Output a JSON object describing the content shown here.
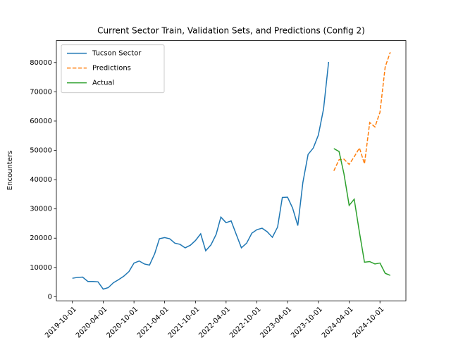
{
  "chart_data": {
    "type": "line",
    "title": "Current Sector Train, Validation Sets, and Predictions (Config 2)",
    "ylabel": "Encounters",
    "xlim": [
      "2019-06-28",
      "2025-03-04"
    ],
    "ylim": [
      -1400,
      87500
    ],
    "xticks": [
      "2019-10-01",
      "2020-04-01",
      "2020-10-01",
      "2021-04-01",
      "2021-10-01",
      "2022-04-01",
      "2022-10-01",
      "2023-04-01",
      "2023-10-01",
      "2024-04-01",
      "2024-10-01"
    ],
    "yticks": [
      0,
      10000,
      20000,
      30000,
      40000,
      50000,
      60000,
      70000,
      80000
    ],
    "legend": "upper left",
    "series": [
      {
        "name": "Tucson Sector",
        "color": "#1f77b4",
        "linestyle": "solid",
        "x": [
          "2019-10",
          "2019-11",
          "2019-12",
          "2020-01",
          "2020-02",
          "2020-03",
          "2020-04",
          "2020-05",
          "2020-06",
          "2020-07",
          "2020-08",
          "2020-09",
          "2020-10",
          "2020-11",
          "2020-12",
          "2021-01",
          "2021-02",
          "2021-03",
          "2021-04",
          "2021-05",
          "2021-06",
          "2021-07",
          "2021-08",
          "2021-09",
          "2021-10",
          "2021-11",
          "2021-12",
          "2022-01",
          "2022-02",
          "2022-03",
          "2022-04",
          "2022-05",
          "2022-06",
          "2022-07",
          "2022-08",
          "2022-09",
          "2022-10",
          "2022-11",
          "2022-12",
          "2023-01",
          "2023-02",
          "2023-03",
          "2023-04",
          "2023-05",
          "2023-06",
          "2023-07",
          "2023-08",
          "2023-09",
          "2023-10",
          "2023-11",
          "2023-12"
        ],
        "values": [
          6300,
          6600,
          6700,
          5200,
          5200,
          5100,
          2600,
          3100,
          4800,
          5800,
          7000,
          8600,
          11500,
          12200,
          11200,
          10800,
          14700,
          19800,
          20200,
          19800,
          18300,
          17900,
          16700,
          17600,
          19200,
          21500,
          15700,
          17700,
          21300,
          27200,
          25300,
          25900,
          21200,
          16700,
          18300,
          21700,
          22900,
          23400,
          22200,
          20300,
          23800,
          33900,
          34000,
          30300,
          24300,
          39000,
          48600,
          50800,
          55200,
          64200,
          80200
        ]
      },
      {
        "name": "Predictions",
        "color": "#ff7f0e",
        "linestyle": "dashed",
        "x": [
          "2024-01",
          "2024-02",
          "2024-03",
          "2024-04",
          "2024-05",
          "2024-06",
          "2024-07",
          "2024-08",
          "2024-09",
          "2024-10",
          "2024-11",
          "2024-12"
        ],
        "values": [
          43000,
          46800,
          47000,
          45200,
          47800,
          50800,
          45400,
          59500,
          58000,
          63000,
          78500,
          83500
        ]
      },
      {
        "name": "Actual",
        "color": "#2ca02c",
        "linestyle": "solid",
        "x": [
          "2024-01",
          "2024-02",
          "2024-03",
          "2024-04",
          "2024-05",
          "2024-06",
          "2024-07",
          "2024-08",
          "2024-09",
          "2024-10",
          "2024-11",
          "2024-12"
        ],
        "values": [
          50600,
          49600,
          42000,
          31200,
          33300,
          22000,
          11800,
          12000,
          11200,
          11500,
          8000,
          7300
        ]
      }
    ]
  }
}
